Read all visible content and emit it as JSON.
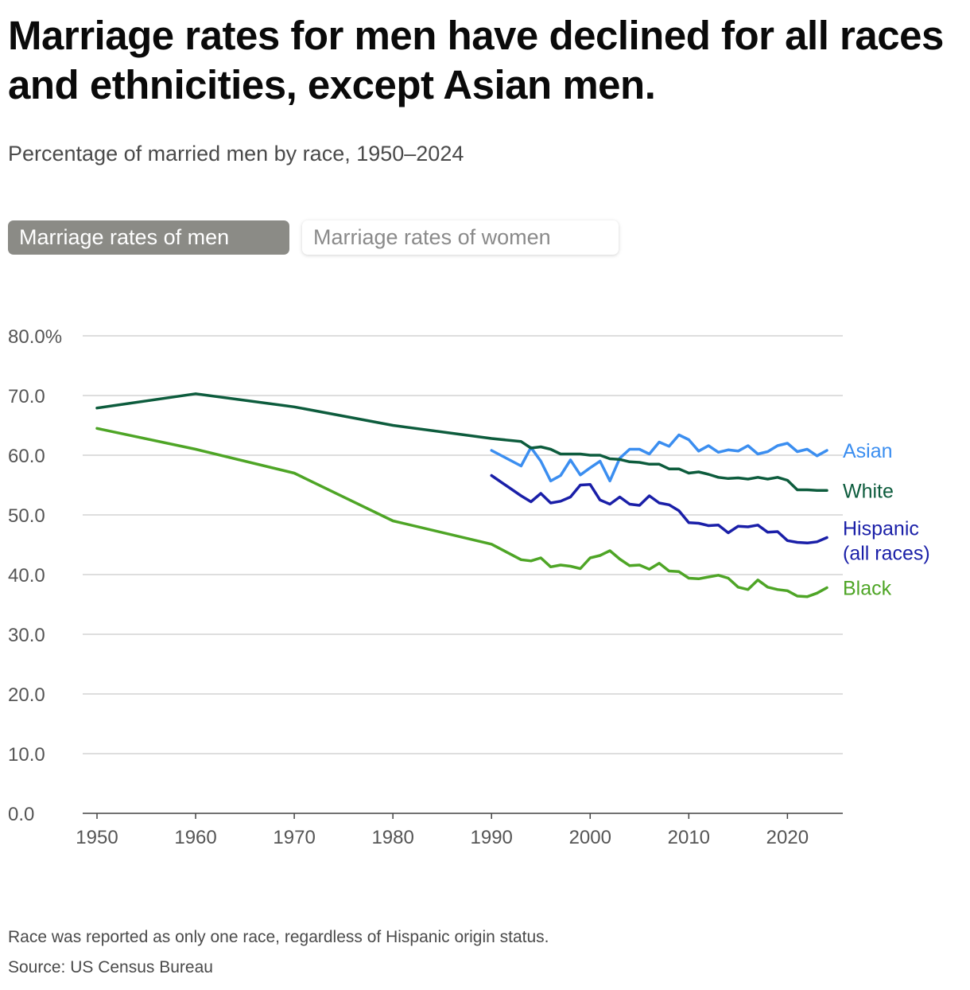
{
  "header": {
    "title": "Marriage rates for men have declined for all races and ethnicities, except Asian men.",
    "subtitle": "Percentage of married men by race, 1950–2024"
  },
  "toggle": {
    "men_label": "Marriage rates of men",
    "women_label": "Marriage rates of women",
    "selected": "men"
  },
  "footer": {
    "note": "Race was reported as only one race, regardless of Hispanic origin status.",
    "source": "Source: US Census Bureau"
  },
  "chart_data": {
    "type": "line",
    "xlim": [
      1950,
      2025
    ],
    "ylim": [
      0,
      80
    ],
    "x_ticks": [
      "1950",
      "1960",
      "1970",
      "1980",
      "1990",
      "2000",
      "2010",
      "2020"
    ],
    "y_ticks": [
      "0.0",
      "10.0",
      "20.0",
      "30.0",
      "40.0",
      "50.0",
      "60.0",
      "70.0",
      "80.0%"
    ],
    "grid": true,
    "legend": "direct labels at right end of lines",
    "series": [
      {
        "name": "Asian",
        "label_lines": [
          "Asian"
        ],
        "color": "#3b8ef0",
        "x": [
          1990,
          1993,
          1994,
          1995,
          1996,
          1997,
          1998,
          1999,
          2000,
          2001,
          2002,
          2003,
          2004,
          2005,
          2006,
          2007,
          2008,
          2009,
          2010,
          2011,
          2012,
          2013,
          2014,
          2015,
          2016,
          2017,
          2018,
          2019,
          2020,
          2021,
          2022,
          2023,
          2024
        ],
        "values": [
          60.8,
          58.2,
          61.3,
          59.0,
          55.7,
          56.6,
          59.2,
          56.7,
          57.9,
          59.0,
          55.7,
          59.5,
          61.0,
          61.0,
          60.2,
          62.2,
          61.5,
          63.4,
          62.6,
          60.7,
          61.6,
          60.5,
          60.9,
          60.7,
          61.6,
          60.2,
          60.6,
          61.6,
          62.0,
          60.6,
          61.0,
          59.9,
          60.8
        ]
      },
      {
        "name": "White",
        "label_lines": [
          "White"
        ],
        "color": "#0d5c3d",
        "x": [
          1950,
          1960,
          1970,
          1980,
          1990,
          1993,
          1994,
          1995,
          1996,
          1997,
          1998,
          1999,
          2000,
          2001,
          2002,
          2003,
          2004,
          2005,
          2006,
          2007,
          2008,
          2009,
          2010,
          2011,
          2012,
          2013,
          2014,
          2015,
          2016,
          2017,
          2018,
          2019,
          2020,
          2021,
          2022,
          2023,
          2024
        ],
        "values": [
          67.9,
          70.3,
          68.1,
          65.0,
          62.8,
          62.3,
          61.2,
          61.4,
          61.0,
          60.2,
          60.2,
          60.2,
          60.0,
          60.0,
          59.4,
          59.3,
          58.9,
          58.8,
          58.5,
          58.5,
          57.7,
          57.7,
          57.0,
          57.2,
          56.8,
          56.3,
          56.1,
          56.2,
          56.0,
          56.3,
          56.0,
          56.3,
          55.8,
          54.2,
          54.2,
          54.1,
          54.1
        ]
      },
      {
        "name": "Hispanic (all races)",
        "label_lines": [
          "Hispanic",
          "(all races)"
        ],
        "color": "#1a1fa8",
        "x": [
          1990,
          1993,
          1994,
          1995,
          1996,
          1997,
          1998,
          1999,
          2000,
          2001,
          2002,
          2003,
          2004,
          2005,
          2006,
          2007,
          2008,
          2009,
          2010,
          2011,
          2012,
          2013,
          2014,
          2015,
          2016,
          2017,
          2018,
          2019,
          2020,
          2021,
          2022,
          2023,
          2024
        ],
        "values": [
          56.6,
          53.2,
          52.2,
          53.6,
          52.0,
          52.3,
          53.0,
          55.0,
          55.1,
          52.5,
          51.8,
          53.0,
          51.8,
          51.6,
          53.2,
          52.0,
          51.7,
          50.7,
          48.7,
          48.6,
          48.2,
          48.3,
          47.0,
          48.1,
          48.0,
          48.3,
          47.1,
          47.2,
          45.7,
          45.4,
          45.3,
          45.5,
          46.2
        ]
      },
      {
        "name": "Black",
        "label_lines": [
          "Black"
        ],
        "color": "#4ea526",
        "x": [
          1950,
          1960,
          1970,
          1980,
          1990,
          1993,
          1994,
          1995,
          1996,
          1997,
          1998,
          1999,
          2000,
          2001,
          2002,
          2003,
          2004,
          2005,
          2006,
          2007,
          2008,
          2009,
          2010,
          2011,
          2012,
          2013,
          2014,
          2015,
          2016,
          2017,
          2018,
          2019,
          2020,
          2021,
          2022,
          2023,
          2024
        ],
        "values": [
          64.5,
          61.0,
          57.0,
          49.0,
          45.1,
          42.5,
          42.3,
          42.8,
          41.3,
          41.6,
          41.4,
          41.0,
          42.8,
          43.2,
          44.0,
          42.6,
          41.5,
          41.6,
          40.9,
          41.9,
          40.6,
          40.5,
          39.4,
          39.3,
          39.6,
          39.9,
          39.4,
          37.9,
          37.5,
          39.1,
          37.9,
          37.5,
          37.3,
          36.4,
          36.3,
          36.9,
          37.8
        ]
      }
    ]
  }
}
